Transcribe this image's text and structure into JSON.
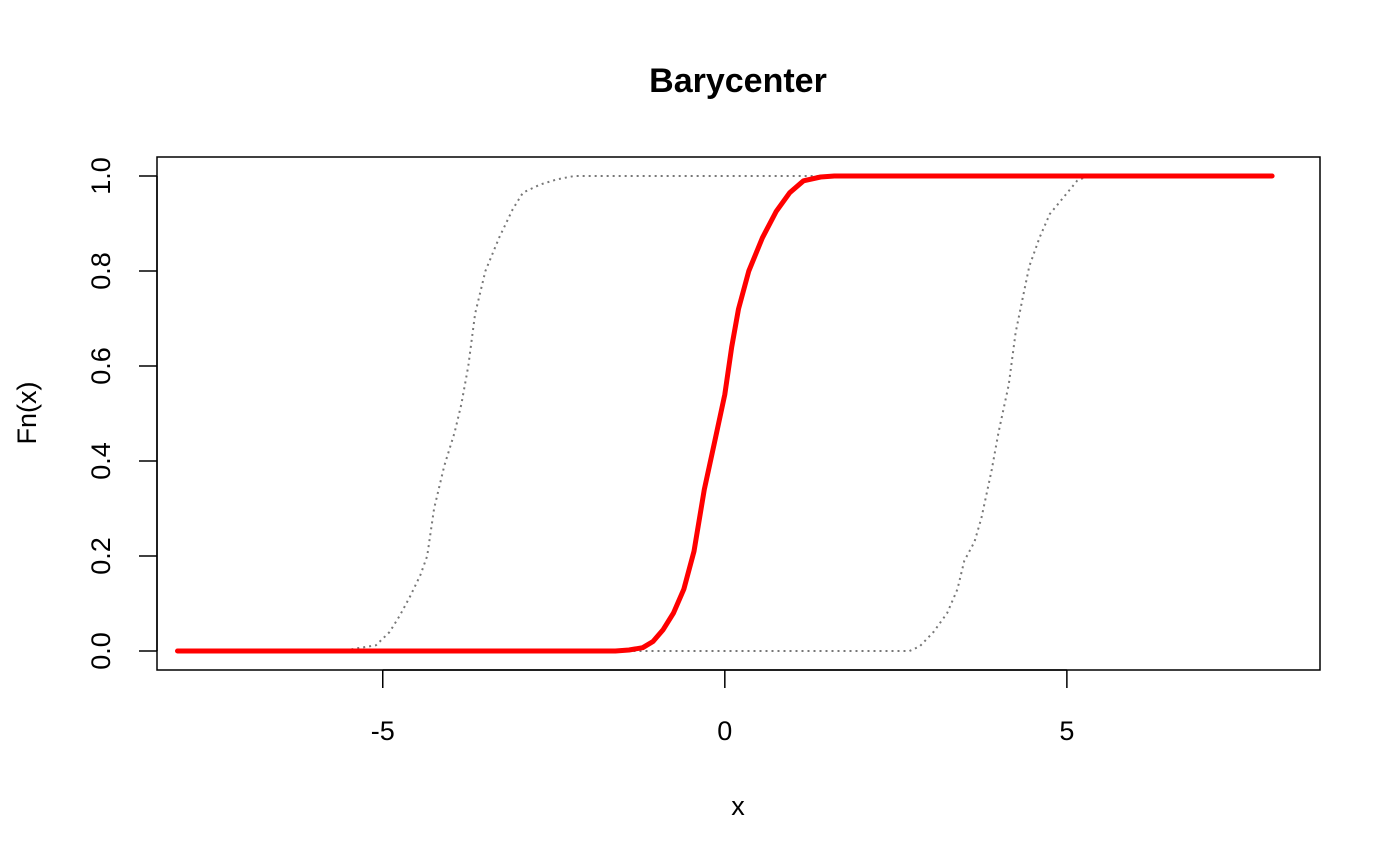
{
  "chart_data": {
    "type": "line",
    "title": "Barycenter",
    "xlabel": "x",
    "ylabel": "Fn(x)",
    "xlim": [
      -8.3,
      8.7
    ],
    "ylim": [
      -0.04,
      1.04
    ],
    "x_ticks": [
      -5,
      0,
      5
    ],
    "x_tick_labels": [
      "-5",
      "0",
      "5"
    ],
    "y_ticks": [
      0,
      0.2,
      0.4,
      0.6,
      0.8,
      1.0
    ],
    "y_tick_labels": [
      "0.0",
      "0.2",
      "0.4",
      "0.6",
      "0.8",
      "1.0"
    ],
    "grid": false,
    "series": [
      {
        "color": "#777777",
        "style": "dotted",
        "points": [
          [
            -8,
            0
          ],
          [
            -5.6,
            0
          ],
          [
            -5.4,
            0.005
          ],
          [
            -5.1,
            0.012
          ],
          [
            -4.9,
            0.04
          ],
          [
            -4.75,
            0.075
          ],
          [
            -4.6,
            0.115
          ],
          [
            -4.45,
            0.16
          ],
          [
            -4.35,
            0.2
          ],
          [
            -4.25,
            0.3
          ],
          [
            -4.1,
            0.39
          ],
          [
            -3.95,
            0.46
          ],
          [
            -3.85,
            0.52
          ],
          [
            -3.75,
            0.6
          ],
          [
            -3.65,
            0.71
          ],
          [
            -3.5,
            0.8
          ],
          [
            -3.3,
            0.87
          ],
          [
            -3.1,
            0.93
          ],
          [
            -2.95,
            0.965
          ],
          [
            -2.7,
            0.982
          ],
          [
            -2.45,
            0.993
          ],
          [
            -2.2,
            1.0
          ],
          [
            8,
            1.0
          ]
        ]
      },
      {
        "color": "#777777",
        "style": "dotted",
        "points": [
          [
            -8,
            0
          ],
          [
            2.7,
            0
          ],
          [
            2.85,
            0.01
          ],
          [
            3.05,
            0.04
          ],
          [
            3.25,
            0.08
          ],
          [
            3.4,
            0.13
          ],
          [
            3.5,
            0.19
          ],
          [
            3.65,
            0.23
          ],
          [
            3.75,
            0.28
          ],
          [
            3.9,
            0.38
          ],
          [
            4.0,
            0.46
          ],
          [
            4.15,
            0.56
          ],
          [
            4.25,
            0.67
          ],
          [
            4.35,
            0.74
          ],
          [
            4.45,
            0.81
          ],
          [
            4.6,
            0.87
          ],
          [
            4.75,
            0.92
          ],
          [
            4.95,
            0.955
          ],
          [
            5.15,
            0.99
          ],
          [
            5.3,
            1.0
          ],
          [
            8,
            1.0
          ]
        ]
      },
      {
        "color": "#ff0000",
        "style": "solid",
        "points": [
          [
            -8,
            0
          ],
          [
            -1.6,
            0
          ],
          [
            -1.4,
            0.002
          ],
          [
            -1.2,
            0.007
          ],
          [
            -1.05,
            0.02
          ],
          [
            -0.9,
            0.045
          ],
          [
            -0.75,
            0.08
          ],
          [
            -0.6,
            0.13
          ],
          [
            -0.45,
            0.21
          ],
          [
            -0.3,
            0.34
          ],
          [
            -0.15,
            0.44
          ],
          [
            0.0,
            0.54
          ],
          [
            0.1,
            0.64
          ],
          [
            0.2,
            0.72
          ],
          [
            0.35,
            0.8
          ],
          [
            0.55,
            0.87
          ],
          [
            0.75,
            0.925
          ],
          [
            0.95,
            0.965
          ],
          [
            1.15,
            0.99
          ],
          [
            1.4,
            0.998
          ],
          [
            1.6,
            1.0
          ],
          [
            8,
            1.0
          ]
        ]
      }
    ]
  }
}
